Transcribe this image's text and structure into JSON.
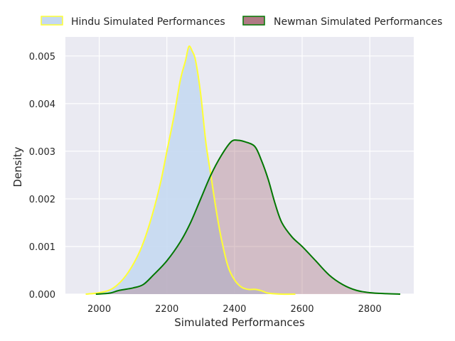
{
  "chart_data": {
    "type": "area",
    "xlabel": "Simulated Performances",
    "ylabel": "Density",
    "xlim": [
      1900,
      2930
    ],
    "ylim": [
      0,
      0.0054
    ],
    "x_ticks": [
      2000,
      2200,
      2400,
      2600,
      2800
    ],
    "y_ticks": [
      0.0,
      0.001,
      0.002,
      0.003,
      0.004,
      0.005
    ],
    "y_tick_labels": [
      "0.000",
      "0.001",
      "0.002",
      "0.003",
      "0.004",
      "0.005"
    ],
    "grid": true,
    "legend_placement": "top",
    "series": [
      {
        "name": "Hindu Simulated Performances",
        "fill": "#c5d9f1",
        "fill_opacity": 0.9,
        "stroke": "#ffff33",
        "points": [
          [
            1960,
            0.0
          ],
          [
            2000,
            3e-05
          ],
          [
            2040,
            0.00012
          ],
          [
            2080,
            0.0004
          ],
          [
            2120,
            0.0009
          ],
          [
            2150,
            0.0015
          ],
          [
            2180,
            0.0023
          ],
          [
            2200,
            0.003
          ],
          [
            2220,
            0.0037
          ],
          [
            2240,
            0.0045
          ],
          [
            2255,
            0.0049
          ],
          [
            2265,
            0.0052
          ],
          [
            2275,
            0.0051
          ],
          [
            2285,
            0.0049
          ],
          [
            2300,
            0.0042
          ],
          [
            2315,
            0.0032
          ],
          [
            2330,
            0.0025
          ],
          [
            2345,
            0.0018
          ],
          [
            2360,
            0.0012
          ],
          [
            2380,
            0.0006
          ],
          [
            2400,
            0.0003
          ],
          [
            2420,
            0.00015
          ],
          [
            2440,
            0.0001
          ],
          [
            2460,
            0.0001
          ],
          [
            2480,
            7e-05
          ],
          [
            2500,
            2e-05
          ],
          [
            2540,
            0.0
          ],
          [
            2580,
            0.0
          ]
        ]
      },
      {
        "name": "Newman Simulated Performances",
        "fill": "#b07a84",
        "fill_opacity": 0.4,
        "stroke": "#007700",
        "points": [
          [
            1990,
            0.0
          ],
          [
            2030,
            2e-05
          ],
          [
            2060,
            8e-05
          ],
          [
            2100,
            0.00013
          ],
          [
            2130,
            0.0002
          ],
          [
            2160,
            0.0004
          ],
          [
            2200,
            0.0007
          ],
          [
            2240,
            0.0011
          ],
          [
            2270,
            0.0015
          ],
          [
            2300,
            0.002
          ],
          [
            2330,
            0.0025
          ],
          [
            2360,
            0.0029
          ],
          [
            2390,
            0.0032
          ],
          [
            2410,
            0.00323
          ],
          [
            2430,
            0.0032
          ],
          [
            2460,
            0.0031
          ],
          [
            2480,
            0.0028
          ],
          [
            2500,
            0.0024
          ],
          [
            2520,
            0.0019
          ],
          [
            2540,
            0.0015
          ],
          [
            2570,
            0.0012
          ],
          [
            2600,
            0.001
          ],
          [
            2640,
            0.0007
          ],
          [
            2680,
            0.0004
          ],
          [
            2720,
            0.0002
          ],
          [
            2760,
            8e-05
          ],
          [
            2800,
            3e-05
          ],
          [
            2850,
            1e-05
          ],
          [
            2890,
            0.0
          ]
        ]
      }
    ]
  }
}
